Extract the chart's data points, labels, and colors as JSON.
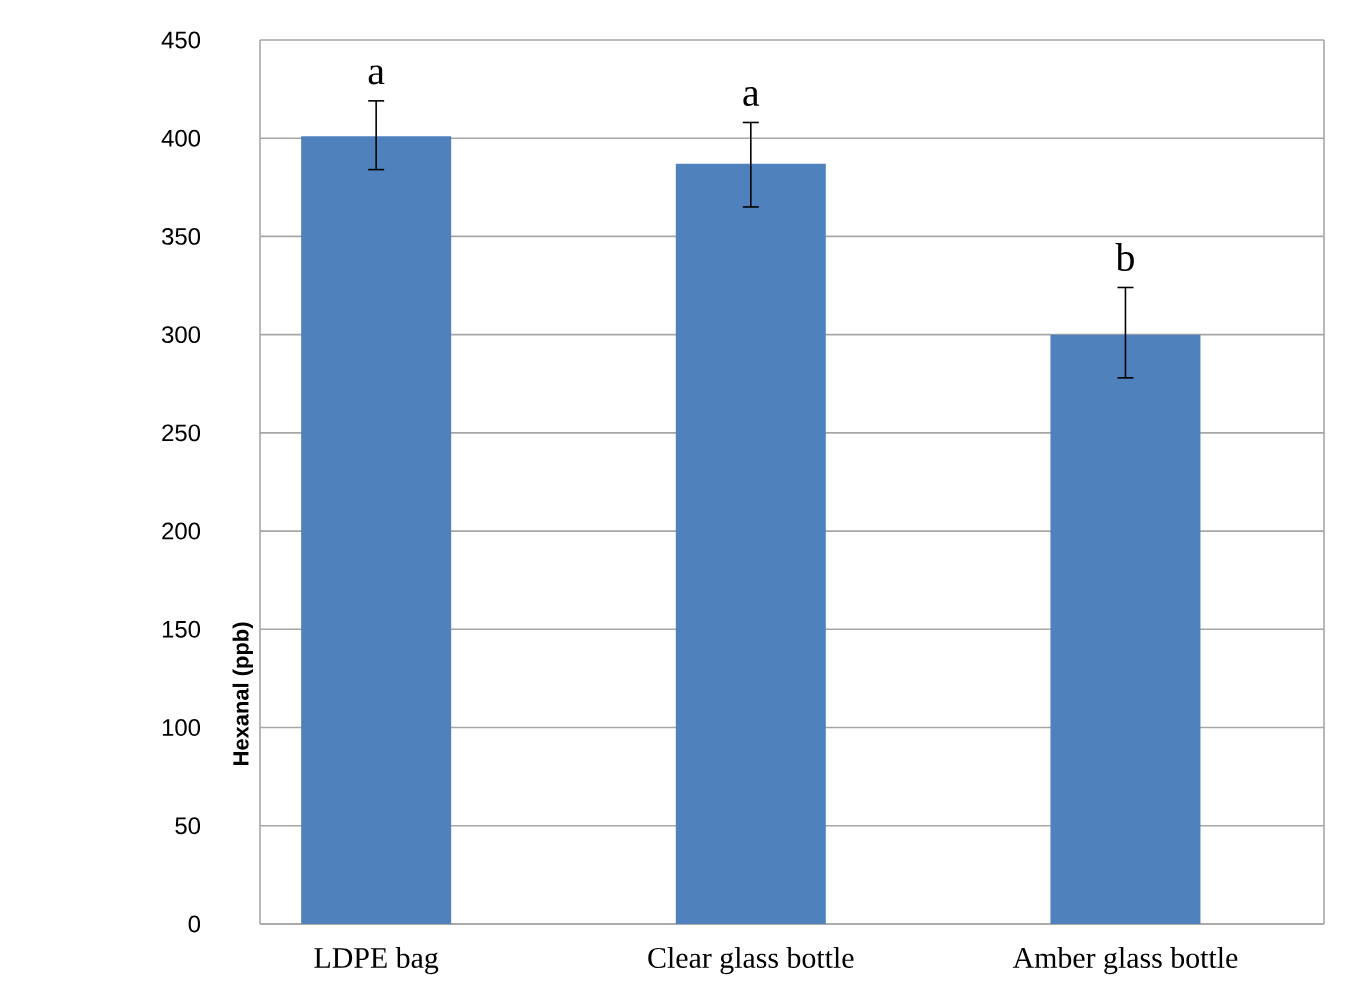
{
  "chart_data": {
    "type": "bar",
    "ylabel": "Hexanal (ppb)",
    "categories": [
      "LDPE bag",
      "Clear glass bottle",
      "Amber glass bottle"
    ],
    "values": [
      401,
      387,
      300
    ],
    "errors": [
      [
        384,
        419
      ],
      [
        365,
        408
      ],
      [
        278,
        324
      ]
    ],
    "color": "#4f81bd",
    "ylim": [
      0,
      450
    ],
    "yticks": [
      0,
      50,
      100,
      150,
      200,
      250,
      300,
      350,
      400,
      450
    ],
    "grid": "y",
    "annotations": [
      "a",
      "a",
      "b"
    ]
  }
}
